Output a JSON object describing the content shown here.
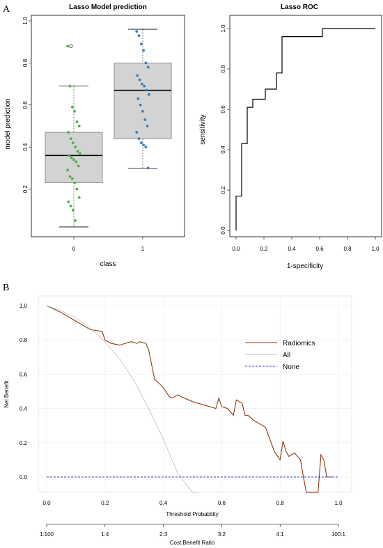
{
  "panels": {
    "a": "A",
    "b": "B"
  },
  "chart_data": [
    {
      "type": "box",
      "title": "Lasso Model prediction",
      "xlabel": "class",
      "ylabel": "model prediction",
      "categories": [
        "0",
        "1"
      ],
      "ylim": [
        0.0,
        1.0
      ],
      "yticks": [
        "0.2",
        "0.4",
        "0.6",
        "0.8",
        "1.0"
      ],
      "boxes": [
        {
          "category": "0",
          "min": 0.02,
          "q1": 0.23,
          "median": 0.36,
          "q3": 0.47,
          "max": 0.69,
          "outliers": [
            0.88
          ]
        },
        {
          "category": "1",
          "min": 0.3,
          "q1": 0.44,
          "median": 0.67,
          "q3": 0.8,
          "max": 0.96,
          "outliers": []
        }
      ],
      "points": [
        {
          "category": "0",
          "values": [
            0.88,
            0.69,
            0.59,
            0.57,
            0.52,
            0.5,
            0.47,
            0.44,
            0.42,
            0.4,
            0.38,
            0.37,
            0.36,
            0.35,
            0.34,
            0.33,
            0.31,
            0.29,
            0.26,
            0.25,
            0.23,
            0.2,
            0.16,
            0.14,
            0.12,
            0.1,
            0.05
          ]
        },
        {
          "category": "1",
          "values": [
            0.95,
            0.93,
            0.89,
            0.86,
            0.8,
            0.78,
            0.74,
            0.72,
            0.7,
            0.69,
            0.67,
            0.65,
            0.63,
            0.6,
            0.57,
            0.53,
            0.5,
            0.47,
            0.44,
            0.42,
            0.41,
            0.4,
            0.3
          ]
        }
      ],
      "colors": {
        "box_fill": "#d3d3d3",
        "class0": "#4daf4a",
        "class1": "#377eb8"
      }
    },
    {
      "type": "line",
      "title": "Lasso ROC",
      "xlabel": "1-specificity",
      "ylabel": "sensitivity",
      "xlim": [
        0.0,
        1.0
      ],
      "ylim": [
        0.0,
        1.0
      ],
      "xticks": [
        "0.0",
        "0.2",
        "0.4",
        "0.6",
        "0.8",
        "1.0"
      ],
      "yticks": [
        "0.0",
        "0.2",
        "0.4",
        "0.6",
        "0.8",
        "1.0"
      ],
      "x": [
        0.0,
        0.0,
        0.04,
        0.04,
        0.08,
        0.08,
        0.12,
        0.12,
        0.21,
        0.21,
        0.29,
        0.29,
        0.33,
        0.33,
        0.62,
        0.62,
        1.0
      ],
      "y": [
        0.0,
        0.17,
        0.17,
        0.43,
        0.43,
        0.61,
        0.61,
        0.65,
        0.65,
        0.7,
        0.7,
        0.78,
        0.78,
        0.96,
        0.96,
        1.0,
        1.0
      ]
    },
    {
      "type": "line",
      "xlabel": "Threshold Probability",
      "ylabel": "Net Benefit",
      "xlim": [
        0.0,
        1.0
      ],
      "ylim": [
        -0.09,
        1.0
      ],
      "xticks": [
        "0.0",
        "0.2",
        "0.4",
        "0.6",
        "0.8",
        "1.0"
      ],
      "yticks": [
        "0.0",
        "0.2",
        "0.4",
        "0.6",
        "0.8",
        "1.0"
      ],
      "secondary_axis_label": "Cost:Benefit Ratio",
      "secondary_ticks": [
        "1:100",
        "1:4",
        "2:3",
        "3:2",
        "4:1",
        "100:1"
      ],
      "grid": true,
      "legend_position": "top-right",
      "series": [
        {
          "name": "Radiomics",
          "color": "#8b3a0f",
          "style": "solid",
          "x": [
            0.0,
            0.05,
            0.1,
            0.15,
            0.19,
            0.2,
            0.22,
            0.25,
            0.27,
            0.29,
            0.31,
            0.32,
            0.34,
            0.35,
            0.37,
            0.39,
            0.4,
            0.42,
            0.43,
            0.45,
            0.46,
            0.5,
            0.54,
            0.58,
            0.59,
            0.6,
            0.62,
            0.64,
            0.65,
            0.67,
            0.68,
            0.69,
            0.71,
            0.75,
            0.78,
            0.8,
            0.81,
            0.82,
            0.83,
            0.85,
            0.87,
            0.88,
            0.89,
            0.9,
            0.93,
            0.94,
            0.95,
            0.96,
            0.98
          ],
          "y": [
            1.0,
            0.96,
            0.91,
            0.86,
            0.85,
            0.8,
            0.78,
            0.77,
            0.78,
            0.79,
            0.78,
            0.79,
            0.78,
            0.74,
            0.57,
            0.54,
            0.52,
            0.47,
            0.46,
            0.48,
            0.47,
            0.44,
            0.42,
            0.4,
            0.46,
            0.41,
            0.4,
            0.36,
            0.45,
            0.43,
            0.36,
            0.36,
            0.33,
            0.29,
            0.15,
            0.1,
            0.21,
            0.15,
            0.12,
            0.14,
            0.1,
            0.0,
            -0.09,
            -0.09,
            -0.09,
            0.13,
            0.1,
            0.0,
            0.0
          ]
        },
        {
          "name": "All",
          "color": "#bdbdbd",
          "style": "solid",
          "x": [
            0.0,
            0.05,
            0.1,
            0.15,
            0.2,
            0.25,
            0.3,
            0.35,
            0.4,
            0.45,
            0.5,
            0.52
          ],
          "y": [
            1.0,
            0.97,
            0.93,
            0.87,
            0.79,
            0.69,
            0.56,
            0.4,
            0.22,
            0.02,
            -0.09,
            -0.09
          ]
        },
        {
          "name": "None",
          "color": "#3b3bc4",
          "style": "dashed",
          "x": [
            0.0,
            1.0
          ],
          "y": [
            0.0,
            0.0
          ]
        }
      ]
    }
  ]
}
